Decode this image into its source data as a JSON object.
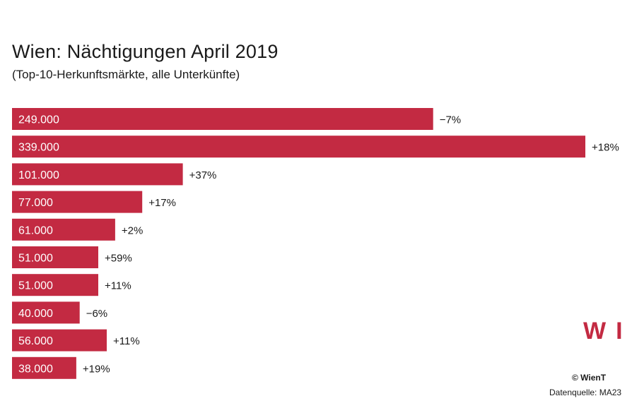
{
  "header": {
    "title": "Wien: Nächtigungen April 2019",
    "subtitle": "(Top-10-Herkunftsmärkte, alle Unterkünfte)"
  },
  "chart_data": {
    "type": "bar",
    "orientation": "horizontal",
    "title": "Wien: Nächtigungen April 2019",
    "subtitle": "(Top-10-Herkunftsmärkte, alle Unterkünfte)",
    "xlim": [
      0,
      339000
    ],
    "values": [
      249000,
      339000,
      101000,
      77000,
      61000,
      51000,
      51000,
      40000,
      56000,
      38000
    ],
    "value_labels": [
      "249.000",
      "339.000",
      "101.000",
      "77.000",
      "61.000",
      "51.000",
      "51.000",
      "40.000",
      "56.000",
      "38.000"
    ],
    "change_labels": [
      "−7%",
      "+18%",
      "+37%",
      "+17%",
      "+2%",
      "+59%",
      "+11%",
      "−6%",
      "+11%",
      "+19%"
    ],
    "colors": {
      "bar": "#c32a42"
    }
  },
  "footer": {
    "logo": "WI",
    "copyright": "© WienT",
    "source": "Datenquelle: MA23"
  }
}
